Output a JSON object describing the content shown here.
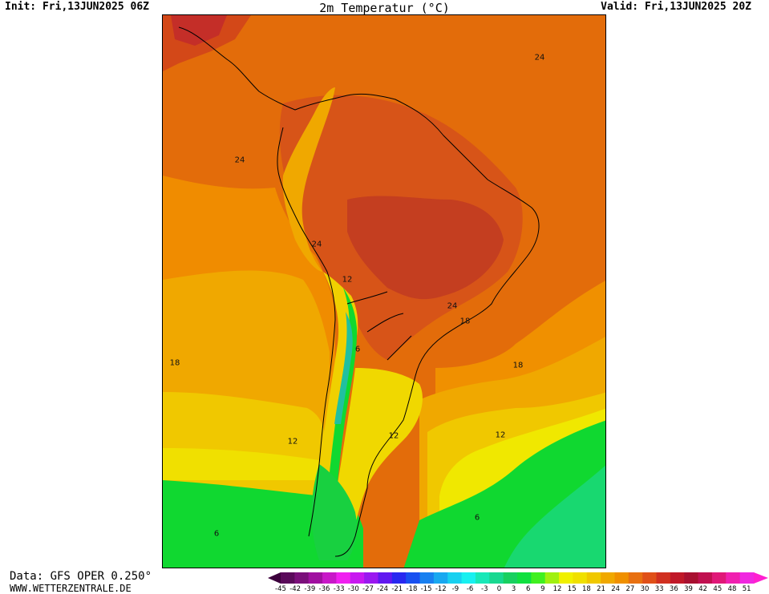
{
  "header": {
    "init": "Init: Fri,13JUN2025 06Z",
    "title": "2m Temperatur (°C)",
    "valid": "Valid: Fri,13JUN2025 20Z"
  },
  "map": {
    "region": "South America",
    "isotherm_labels": [
      {
        "text": "24",
        "id": "carib"
      },
      {
        "text": "24",
        "id": "pacific-north"
      },
      {
        "text": "24",
        "id": "peru-coast"
      },
      {
        "text": "12",
        "id": "bolivia-andes"
      },
      {
        "text": "24",
        "id": "brazil-south"
      },
      {
        "text": "18",
        "id": "sao-paulo"
      },
      {
        "text": "6",
        "id": "andes-argentina"
      },
      {
        "text": "18",
        "id": "pacific-mid"
      },
      {
        "text": "18",
        "id": "atlantic-mid"
      },
      {
        "text": "12",
        "id": "pacific-south"
      },
      {
        "text": "12",
        "id": "patagonia"
      },
      {
        "text": "12",
        "id": "atlantic-south"
      },
      {
        "text": "6",
        "id": "atlantic-far-south"
      },
      {
        "text": "6",
        "id": "pacific-far-south"
      }
    ]
  },
  "footer": {
    "data_source": "Data: GFS OPER 0.250°",
    "url": "WWW.WETTERZENTRALE.DE"
  },
  "colorbar": {
    "unit": "°C",
    "ticks": [
      "-45",
      "-42",
      "-39",
      "-36",
      "-33",
      "-30",
      "-27",
      "-24",
      "-21",
      "-18",
      "-15",
      "-12",
      "-9",
      "-6",
      "-3",
      "0",
      "3",
      "6",
      "9",
      "12",
      "15",
      "18",
      "21",
      "24",
      "27",
      "30",
      "33",
      "36",
      "39",
      "42",
      "45",
      "48",
      "51"
    ],
    "colors": [
      "#5a0a5a",
      "#7a0f7a",
      "#a010a0",
      "#c818c8",
      "#f020f0",
      "#c818f0",
      "#9a18f0",
      "#6018f0",
      "#2828f0",
      "#1850f0",
      "#1880f0",
      "#18a8f0",
      "#18d0f0",
      "#18f0f0",
      "#18e8b8",
      "#18d890",
      "#18d060",
      "#10e040",
      "#40f020",
      "#a0f010",
      "#f0f000",
      "#f0e000",
      "#f0c800",
      "#f0a800",
      "#f09000",
      "#e87010",
      "#e05018",
      "#d03020",
      "#c01828",
      "#a81030",
      "#c01050",
      "#e01878",
      "#f020b0",
      "#f028e0"
    ],
    "left_arrow": "#3c003c",
    "right_arrow": "#ff20d0"
  },
  "palette": {
    "ocean_warm": "#e0680a",
    "land_hot": "#d04418",
    "land_very_hot": "#c03818",
    "orange_mid": "#f09000",
    "orange_light": "#f0a800",
    "yellow_orange": "#f0c800",
    "yellow": "#f0f000",
    "green": "#18e030",
    "teal": "#18d890",
    "andes_teal": "#20c8a0"
  }
}
